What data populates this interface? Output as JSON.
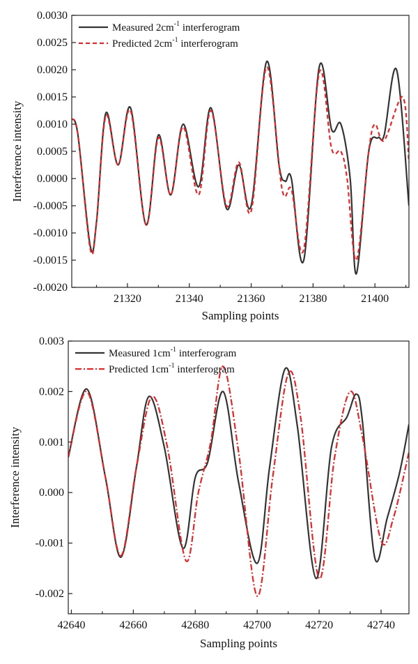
{
  "chart_data": [
    {
      "type": "line",
      "xlabel": "Sampling points",
      "ylabel": "Interference intensity",
      "xlim": [
        21302,
        21411
      ],
      "ylim": [
        -0.002,
        0.003
      ],
      "xticks": [
        21320,
        21340,
        21360,
        21380,
        21400
      ],
      "yticks": [
        -0.002,
        -0.0015,
        -0.001,
        -0.0005,
        0.0,
        0.0005,
        0.001,
        0.0015,
        0.002,
        0.0025,
        0.003
      ],
      "ytick_labels": [
        "-0.0020",
        "-0.0015",
        "-0.0010",
        "-0.0005",
        "0.0000",
        "0.0005",
        "0.0010",
        "0.0015",
        "0.0020",
        "0.0025",
        "0.0030"
      ],
      "xtick_labels": [
        "21320",
        "21340",
        "21360",
        "21380",
        "21400"
      ],
      "grid": false,
      "legend_position": "top-left",
      "series": [
        {
          "name": "Measured 2cm-1 interferogram",
          "legend": {
            "prefix": "Measured 2cm",
            "sup": "-1",
            "suffix": " interferogram"
          },
          "color": "#333333",
          "style": "solid",
          "points": [
            [
              21302,
              0.0011
            ],
            [
              21304,
              0.0008
            ],
            [
              21308,
              -0.00125
            ],
            [
              21310,
              -0.0008
            ],
            [
              21313,
              0.0012
            ],
            [
              21317,
              0.00025
            ],
            [
              21321,
              0.0013
            ],
            [
              21326,
              -0.00085
            ],
            [
              21330,
              0.0008
            ],
            [
              21334,
              -0.0003
            ],
            [
              21338,
              0.001
            ],
            [
              21343,
              -0.00015
            ],
            [
              21347,
              0.0013
            ],
            [
              21352,
              -0.00055
            ],
            [
              21356,
              0.00025
            ],
            [
              21360,
              -0.0005
            ],
            [
              21365,
              0.00215
            ],
            [
              21369,
              0.00025
            ],
            [
              21371,
              -5e-05
            ],
            [
              21373,
              0.0
            ],
            [
              21377,
              -0.0015
            ],
            [
              21382,
              0.00205
            ],
            [
              21386,
              0.0009
            ],
            [
              21389,
              0.001
            ],
            [
              21392,
              0.0
            ],
            [
              21394,
              -0.00175
            ],
            [
              21398,
              0.0005
            ],
            [
              21401,
              0.00075
            ],
            [
              21403,
              0.0008
            ],
            [
              21407,
              0.002
            ],
            [
              21411,
              -0.0005
            ]
          ]
        },
        {
          "name": "Predicted 2cm-1 interferogram",
          "legend": {
            "prefix": "Predicted 2cm",
            "sup": "-1",
            "suffix": " interferogram"
          },
          "color": "#e0282a",
          "style": "dashed",
          "points": [
            [
              21302,
              0.0011
            ],
            [
              21304,
              0.0008
            ],
            [
              21308,
              -0.0013
            ],
            [
              21310,
              -0.0008
            ],
            [
              21313,
              0.00115
            ],
            [
              21317,
              0.00025
            ],
            [
              21321,
              0.00125
            ],
            [
              21326,
              -0.00085
            ],
            [
              21330,
              0.00075
            ],
            [
              21334,
              -0.0003
            ],
            [
              21338,
              0.00095
            ],
            [
              21343,
              -0.0003
            ],
            [
              21347,
              0.00125
            ],
            [
              21352,
              -0.0005
            ],
            [
              21356,
              0.0003
            ],
            [
              21360,
              -0.0006
            ],
            [
              21365,
              0.00205
            ],
            [
              21370,
              -0.0002
            ],
            [
              21373,
              -0.0002
            ],
            [
              21377,
              -0.0013
            ],
            [
              21382,
              0.00195
            ],
            [
              21386,
              0.00055
            ],
            [
              21389,
              0.0005
            ],
            [
              21391,
              0.0
            ],
            [
              21394,
              -0.0015
            ],
            [
              21398,
              0.0005
            ],
            [
              21400,
              0.001
            ],
            [
              21403,
              0.0007
            ],
            [
              21409,
              0.0015
            ],
            [
              21411,
              0.0003
            ]
          ]
        }
      ]
    },
    {
      "type": "line",
      "xlabel": "Sampling points",
      "ylabel": "Interference intensity",
      "xlim": [
        42639,
        42749
      ],
      "ylim": [
        -0.0024,
        0.003
      ],
      "xticks": [
        42640,
        42660,
        42680,
        42700,
        42720,
        42740
      ],
      "yticks": [
        -0.002,
        -0.001,
        0.0,
        0.001,
        0.002,
        0.003
      ],
      "ytick_labels": [
        "-0.002",
        "-0.001",
        "0.000",
        "0.001",
        "0.002",
        "0.003"
      ],
      "xtick_labels": [
        "42640",
        "42660",
        "42680",
        "42700",
        "42720",
        "42740"
      ],
      "grid": false,
      "legend_position": "top-left",
      "series": [
        {
          "name": "Measured 1cm-1 interferogram",
          "legend": {
            "prefix": "Measured 1cm",
            "sup": "-1",
            "suffix": " interferogram"
          },
          "color": "#333333",
          "style": "solid",
          "points": [
            [
              42639,
              0.0007
            ],
            [
              42645,
              0.00205
            ],
            [
              42651,
              0.0003
            ],
            [
              42656,
              -0.00128
            ],
            [
              42661,
              0.0005
            ],
            [
              42665,
              0.0019
            ],
            [
              42670,
              0.0009
            ],
            [
              42676,
              -0.0011
            ],
            [
              42680,
              0.0003
            ],
            [
              42684,
              0.0006
            ],
            [
              42689,
              0.002
            ],
            [
              42694,
              0.0002
            ],
            [
              42700,
              -0.0014
            ],
            [
              42704,
              0.0005
            ],
            [
              42709,
              0.00245
            ],
            [
              42713,
              0.0013
            ],
            [
              42719,
              -0.0017
            ],
            [
              42724,
              0.0009
            ],
            [
              42729,
              0.0015
            ],
            [
              42732,
              0.00195
            ],
            [
              42734,
              0.0014
            ],
            [
              42738,
              -0.0013
            ],
            [
              42742,
              -0.0005
            ],
            [
              42746,
              0.0004
            ],
            [
              42749,
              0.00135
            ]
          ]
        },
        {
          "name": "Predicted 1cm-1 interferogram",
          "legend": {
            "prefix": "Predicted 1cm",
            "sup": "-1",
            "suffix": " interferogram"
          },
          "color": "#e0282a",
          "style": "dashdot",
          "points": [
            [
              42639,
              0.0007
            ],
            [
              42645,
              0.002
            ],
            [
              42651,
              0.0003
            ],
            [
              42656,
              -0.00125
            ],
            [
              42661,
              0.0005
            ],
            [
              42666,
              0.0019
            ],
            [
              42671,
              0.0009
            ],
            [
              42677,
              -0.00135
            ],
            [
              42681,
              0.0
            ],
            [
              42685,
              0.001
            ],
            [
              42689,
              0.0025
            ],
            [
              42694,
              0.0008
            ],
            [
              42700,
              -0.00205
            ],
            [
              42705,
              0.0003
            ],
            [
              42710,
              0.00235
            ],
            [
              42714,
              0.0015
            ],
            [
              42720,
              -0.0017
            ],
            [
              42725,
              0.0007
            ],
            [
              42730,
              0.002
            ],
            [
              42734,
              0.0011
            ],
            [
              42740,
              -0.00095
            ],
            [
              42744,
              -0.0005
            ],
            [
              42749,
              0.0008
            ]
          ]
        }
      ]
    }
  ]
}
